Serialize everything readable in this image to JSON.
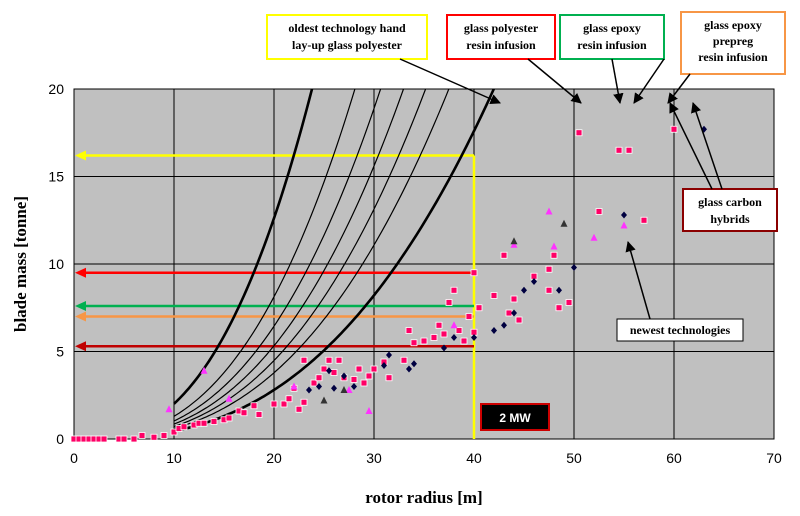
{
  "chart_data": {
    "type": "scatter",
    "title": "",
    "xlabel": "rotor radius [m]",
    "ylabel": "blade mass [tonne]",
    "xlim": [
      0,
      70
    ],
    "ylim": [
      0,
      20
    ],
    "xticks": [
      0,
      10,
      20,
      30,
      40,
      50,
      60,
      70
    ],
    "yticks": [
      0,
      5,
      10,
      15,
      20
    ],
    "grid": true,
    "background_color": "#c0c0c0",
    "curves": [
      {
        "name": "oldest technology hand lay-up glass polyester",
        "coefficient": 0.0045,
        "exponent": 2.65,
        "color": "#000000",
        "style": "thick"
      },
      {
        "name": "glass polyester resin infusion",
        "coefficient": 0.0029,
        "exponent": 2.65,
        "color": "#000000",
        "style": "thin"
      },
      {
        "name": "glass epoxy resin infusion",
        "coefficient": 0.0023,
        "exponent": 2.65,
        "color": "#000000",
        "style": "thin"
      },
      {
        "name": "glass epoxy prepreg resin infusion",
        "coefficient": 0.0019,
        "exponent": 2.65,
        "color": "#000000",
        "style": "thin"
      },
      {
        "name": "glass carbon hybrids",
        "coefficient": 0.0016,
        "exponent": 2.65,
        "color": "#000000",
        "style": "thin"
      },
      {
        "name": "glass carbon hybrids",
        "coefficient": 0.00135,
        "exponent": 2.65,
        "color": "#000000",
        "style": "thin"
      },
      {
        "name": "newest technologies",
        "coefficient": 0.001,
        "exponent": 2.65,
        "color": "#000000",
        "style": "thick"
      }
    ],
    "reference_lines": [
      {
        "kind": "horizontal",
        "y": 16.2,
        "x_from": 0,
        "x_to": 40,
        "color": "#ffff00",
        "arrow": "left"
      },
      {
        "kind": "vertical",
        "x": 40,
        "y_from": 0,
        "y_to": 16.2,
        "color": "#ffff00"
      },
      {
        "kind": "horizontal",
        "y": 9.5,
        "x_from": 0,
        "x_to": 40,
        "color": "#ff0000",
        "arrow": "left"
      },
      {
        "kind": "horizontal",
        "y": 7.6,
        "x_from": 0,
        "x_to": 40,
        "color": "#00b050",
        "arrow": "left"
      },
      {
        "kind": "horizontal",
        "y": 7.0,
        "x_from": 0,
        "x_to": 40,
        "color": "#f79646",
        "arrow": "left"
      },
      {
        "kind": "horizontal",
        "y": 5.3,
        "x_from": 0,
        "x_to": 40,
        "color": "#c00000",
        "arrow": "left"
      }
    ],
    "series": [
      {
        "name": "",
        "marker": "square",
        "color": "#ff0066",
        "points": [
          [
            0,
            0
          ],
          [
            0.5,
            0
          ],
          [
            1,
            0
          ],
          [
            1.5,
            0
          ],
          [
            2,
            0
          ],
          [
            2.5,
            0
          ],
          [
            3,
            0
          ],
          [
            4.5,
            0
          ],
          [
            5,
            0
          ],
          [
            6,
            0
          ],
          [
            6.8,
            0.2
          ],
          [
            8,
            0.1
          ],
          [
            9,
            0.2
          ],
          [
            10,
            0.4
          ],
          [
            10.5,
            0.6
          ],
          [
            11,
            0.7
          ],
          [
            12,
            0.8
          ],
          [
            12.5,
            0.9
          ],
          [
            13,
            0.9
          ],
          [
            14,
            1.0
          ],
          [
            15,
            1.1
          ],
          [
            15.5,
            1.2
          ],
          [
            16.5,
            1.6
          ],
          [
            17,
            1.5
          ],
          [
            18,
            1.9
          ],
          [
            18.5,
            1.4
          ],
          [
            20,
            2.0
          ],
          [
            21,
            2.0
          ],
          [
            21.5,
            2.3
          ],
          [
            22,
            2.9
          ],
          [
            22.5,
            1.7
          ],
          [
            23,
            2.1
          ],
          [
            23,
            4.5
          ],
          [
            24,
            3.2
          ],
          [
            24.5,
            3.5
          ],
          [
            25,
            4.0
          ],
          [
            25.5,
            4.5
          ],
          [
            26,
            3.8
          ],
          [
            26.5,
            4.5
          ],
          [
            27,
            3.5
          ],
          [
            28,
            3.4
          ],
          [
            28.5,
            4.0
          ],
          [
            29,
            3.2
          ],
          [
            29.5,
            3.6
          ],
          [
            30,
            4.0
          ],
          [
            31,
            4.4
          ],
          [
            31.5,
            3.5
          ],
          [
            33,
            4.5
          ],
          [
            33.5,
            6.2
          ],
          [
            34,
            5.5
          ],
          [
            35,
            5.6
          ],
          [
            36,
            5.8
          ],
          [
            36.5,
            6.5
          ],
          [
            37,
            6.0
          ],
          [
            37.5,
            7.8
          ],
          [
            38,
            8.5
          ],
          [
            38.5,
            6.2
          ],
          [
            39,
            5.6
          ],
          [
            39.5,
            7.0
          ],
          [
            40,
            9.5
          ],
          [
            40,
            6.1
          ],
          [
            40.5,
            7.5
          ],
          [
            42,
            8.2
          ],
          [
            43,
            10.5
          ],
          [
            43.5,
            7.2
          ],
          [
            44,
            8.0
          ],
          [
            44.5,
            6.8
          ],
          [
            46,
            9.3
          ],
          [
            47.5,
            9.7
          ],
          [
            47.5,
            8.5
          ],
          [
            48,
            10.5
          ],
          [
            48.5,
            7.5
          ],
          [
            49.5,
            7.8
          ],
          [
            50.5,
            17.5
          ],
          [
            52.5,
            13.0
          ],
          [
            54.5,
            16.5
          ],
          [
            55.5,
            16.5
          ],
          [
            57,
            12.5
          ],
          [
            60,
            17.7
          ]
        ]
      },
      {
        "name": "",
        "marker": "diamond",
        "color": "#000040",
        "points": [
          [
            23.5,
            2.8
          ],
          [
            24.5,
            3.0
          ],
          [
            25.5,
            3.9
          ],
          [
            26,
            2.9
          ],
          [
            27,
            3.6
          ],
          [
            28,
            3.0
          ],
          [
            31,
            4.2
          ],
          [
            31.5,
            4.8
          ],
          [
            33.5,
            4.0
          ],
          [
            34,
            4.3
          ],
          [
            37,
            5.2
          ],
          [
            38,
            5.8
          ],
          [
            40,
            5.8
          ],
          [
            42,
            6.2
          ],
          [
            43,
            6.5
          ],
          [
            44,
            7.2
          ],
          [
            45,
            8.5
          ],
          [
            46,
            9.0
          ],
          [
            48.5,
            8.5
          ],
          [
            50,
            9.8
          ],
          [
            55,
            12.8
          ],
          [
            63,
            17.7
          ]
        ]
      },
      {
        "name": "",
        "marker": "triangle",
        "color": "#ff33ff",
        "points": [
          [
            9.5,
            1.7
          ],
          [
            13,
            3.9
          ],
          [
            15.5,
            2.3
          ],
          [
            22,
            3.0
          ],
          [
            27.5,
            2.8
          ],
          [
            29.5,
            1.6
          ],
          [
            38,
            6.5
          ],
          [
            44,
            11.1
          ],
          [
            47.5,
            13.0
          ],
          [
            48,
            11.0
          ],
          [
            52,
            11.5
          ],
          [
            55,
            12.2
          ],
          [
            62,
            12.2
          ]
        ]
      },
      {
        "name": "",
        "marker": "triangle",
        "color": "#333333",
        "points": [
          [
            25,
            2.2
          ],
          [
            27,
            2.8
          ],
          [
            44,
            11.3
          ],
          [
            49,
            12.3
          ]
        ]
      }
    ]
  },
  "annotations": {
    "yellow_box": {
      "line1": "oldest technology hand",
      "line2": "lay-up  glass polyester",
      "color": "#ffff00"
    },
    "red_box": {
      "line1": "glass polyester",
      "line2": "resin infusion",
      "color": "#ff0000"
    },
    "green_box": {
      "line1": "glass epoxy",
      "line2": "resin infusion",
      "color": "#00b050"
    },
    "orange_box": {
      "line1": "glass epoxy",
      "line2": "prepreg",
      "line3": "resin infusion",
      "color": "#f79646"
    },
    "darkred_box": {
      "line1": "glass carbon",
      "line2": "hybrids",
      "color": "#8b0000"
    },
    "newest_box": {
      "label": "newest technologies",
      "color": "#000000"
    },
    "badge": {
      "label": "2 MW",
      "color": "#cc0000"
    }
  }
}
